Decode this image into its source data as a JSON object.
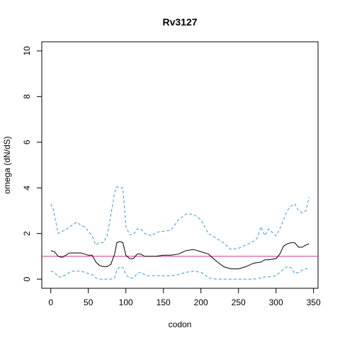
{
  "chart_data": {
    "type": "line",
    "title": "Rv3127",
    "xlabel": "codon",
    "ylabel": "omega (dN/dS)",
    "xlim": [
      -12,
      356
    ],
    "ylim": [
      -0.4,
      10.4
    ],
    "x_ticks": [
      0,
      50,
      100,
      150,
      200,
      250,
      300,
      350
    ],
    "y_ticks": [
      0,
      2,
      4,
      6,
      8,
      10
    ],
    "grid": false,
    "legend": "none",
    "reference_line": {
      "y": 1,
      "color": "#cc3399"
    },
    "series": [
      {
        "style": "solid",
        "color": "#000000",
        "x": [
          0,
          5,
          10,
          15,
          20,
          25,
          30,
          35,
          40,
          45,
          50,
          55,
          60,
          65,
          70,
          75,
          80,
          85,
          88,
          92,
          96,
          100,
          105,
          110,
          115,
          120,
          125,
          130,
          135,
          140,
          150,
          160,
          170,
          180,
          190,
          200,
          210,
          220,
          230,
          240,
          250,
          260,
          270,
          280,
          285,
          290,
          300,
          305,
          310,
          315,
          320,
          325,
          330,
          335,
          340,
          344
        ],
        "y": [
          1.25,
          1.2,
          1.0,
          0.95,
          1.05,
          1.15,
          1.15,
          1.15,
          1.15,
          1.1,
          1.05,
          1.05,
          0.75,
          0.6,
          0.55,
          0.55,
          0.65,
          1.1,
          1.6,
          1.65,
          1.6,
          1.05,
          0.9,
          0.9,
          1.1,
          1.1,
          1.0,
          1.0,
          1.0,
          1.0,
          1.05,
          1.05,
          1.1,
          1.25,
          1.3,
          1.2,
          1.1,
          0.8,
          0.55,
          0.45,
          0.45,
          0.55,
          0.7,
          0.75,
          0.85,
          0.85,
          0.9,
          1.1,
          1.45,
          1.55,
          1.6,
          1.6,
          1.4,
          1.4,
          1.5,
          1.55
        ]
      },
      {
        "style": "dashed",
        "color": "#3399dd",
        "x": [
          0,
          3,
          6,
          10,
          15,
          20,
          25,
          30,
          35,
          40,
          45,
          50,
          55,
          60,
          65,
          70,
          75,
          80,
          85,
          88,
          92,
          96,
          100,
          105,
          110,
          115,
          120,
          125,
          130,
          135,
          140,
          150,
          160,
          170,
          180,
          190,
          200,
          205,
          210,
          220,
          230,
          240,
          250,
          260,
          270,
          275,
          280,
          285,
          290,
          300,
          305,
          310,
          315,
          320,
          325,
          330,
          335,
          340,
          344
        ],
        "y": [
          3.3,
          3.1,
          2.6,
          2.0,
          2.1,
          2.15,
          2.3,
          2.4,
          2.5,
          2.35,
          2.3,
          2.1,
          1.9,
          1.5,
          1.6,
          1.6,
          1.9,
          2.8,
          3.8,
          4.05,
          4.0,
          4.0,
          2.3,
          1.95,
          1.95,
          2.2,
          2.2,
          2.0,
          1.95,
          1.9,
          2.05,
          2.1,
          2.15,
          2.6,
          2.85,
          2.85,
          2.6,
          2.3,
          2.0,
          1.8,
          1.6,
          1.3,
          1.35,
          1.5,
          1.65,
          1.8,
          2.3,
          1.9,
          2.2,
          1.9,
          2.2,
          2.6,
          3.0,
          3.2,
          3.3,
          3.0,
          2.9,
          3.0,
          3.6
        ]
      },
      {
        "style": "dashed",
        "color": "#3399dd",
        "x": [
          0,
          5,
          10,
          15,
          20,
          25,
          30,
          35,
          40,
          45,
          50,
          55,
          60,
          65,
          70,
          75,
          80,
          85,
          88,
          92,
          96,
          100,
          105,
          110,
          115,
          120,
          125,
          130,
          135,
          140,
          150,
          160,
          170,
          180,
          190,
          200,
          205,
          210,
          220,
          230,
          240,
          250,
          260,
          270,
          280,
          285,
          290,
          300,
          305,
          310,
          315,
          320,
          325,
          330,
          335,
          340,
          344
        ],
        "y": [
          0.35,
          0.3,
          0.1,
          0.1,
          0.2,
          0.3,
          0.35,
          0.35,
          0.35,
          0.3,
          0.25,
          0.2,
          0.05,
          0.0,
          0.0,
          0.0,
          0.0,
          0.05,
          0.4,
          0.55,
          0.5,
          0.2,
          0.05,
          0.05,
          0.25,
          0.3,
          0.2,
          0.15,
          0.15,
          0.15,
          0.15,
          0.15,
          0.2,
          0.3,
          0.35,
          0.3,
          0.2,
          0.05,
          0.0,
          0.0,
          0.0,
          0.0,
          0.0,
          0.0,
          0.05,
          0.1,
          0.1,
          0.15,
          0.3,
          0.45,
          0.55,
          0.5,
          0.25,
          0.3,
          0.4,
          0.45,
          0.5
        ]
      }
    ]
  }
}
